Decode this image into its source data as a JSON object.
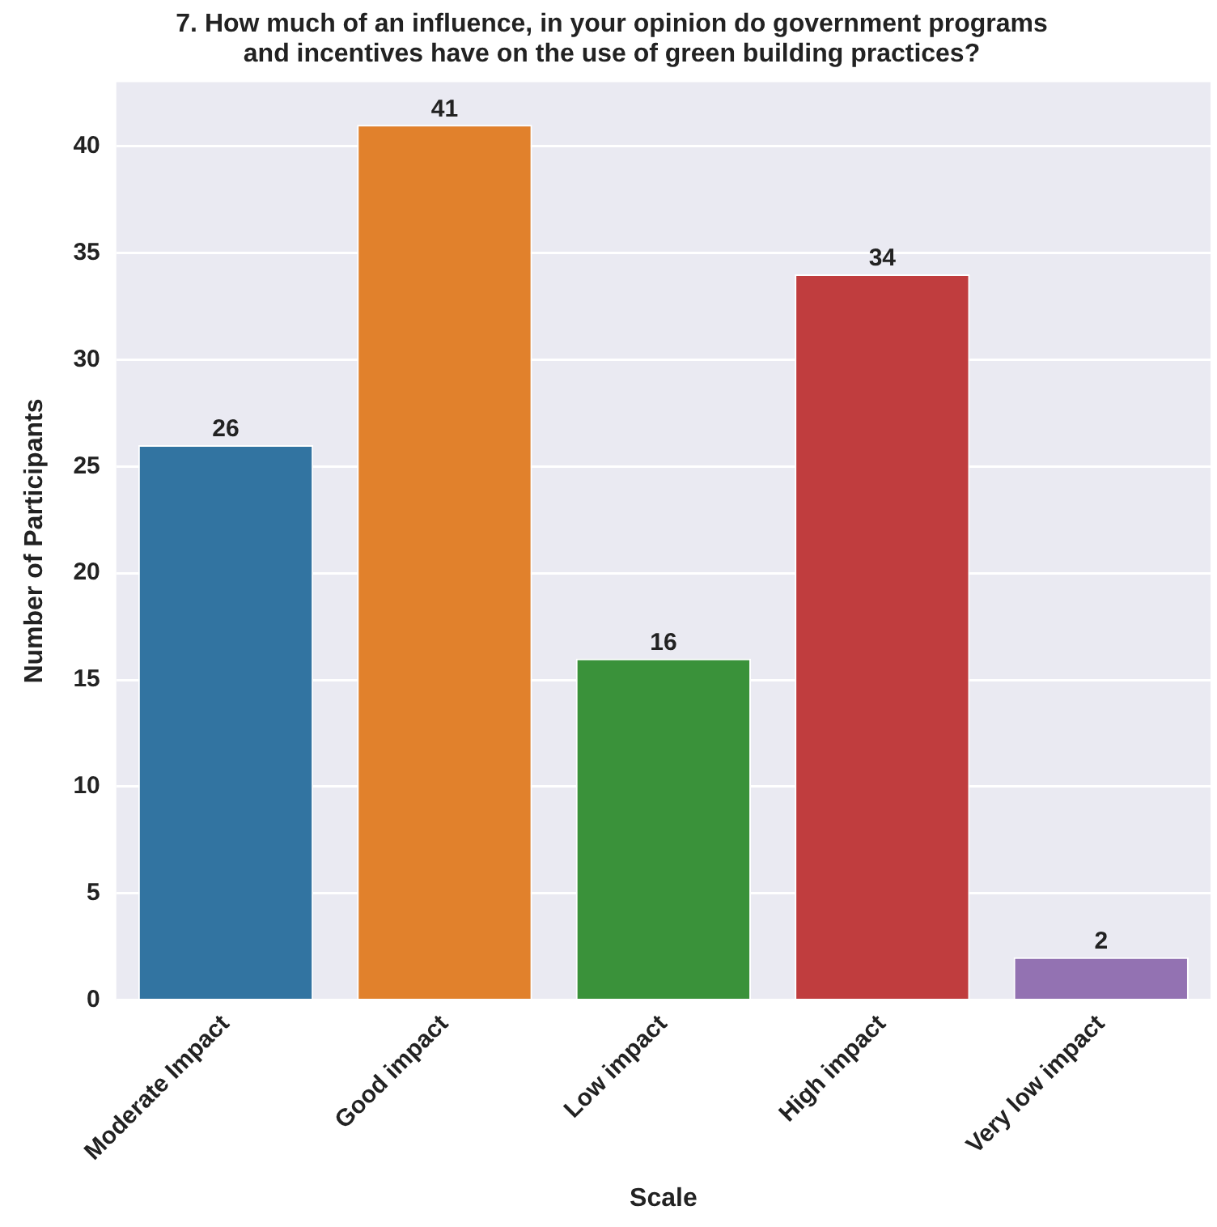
{
  "chart_data": {
    "type": "bar",
    "title": "7. How much of an influence, in your opinion do government programs\nand incentives have on the use of green building practices?",
    "xlabel": "Scale",
    "ylabel": "Number of Participants",
    "categories": [
      "Moderate Impact",
      "Good impact",
      "Low impact",
      "High impact",
      "Very low impact"
    ],
    "values": [
      26,
      41,
      16,
      34,
      2
    ],
    "colors": [
      "#3274a1",
      "#e1812c",
      "#3a923a",
      "#c03d3e",
      "#9372b2"
    ],
    "ylim": [
      0,
      43
    ],
    "yticks": [
      0,
      5,
      10,
      15,
      20,
      25,
      30,
      35,
      40
    ],
    "grid": "y",
    "legend": false,
    "data_labels": true
  }
}
